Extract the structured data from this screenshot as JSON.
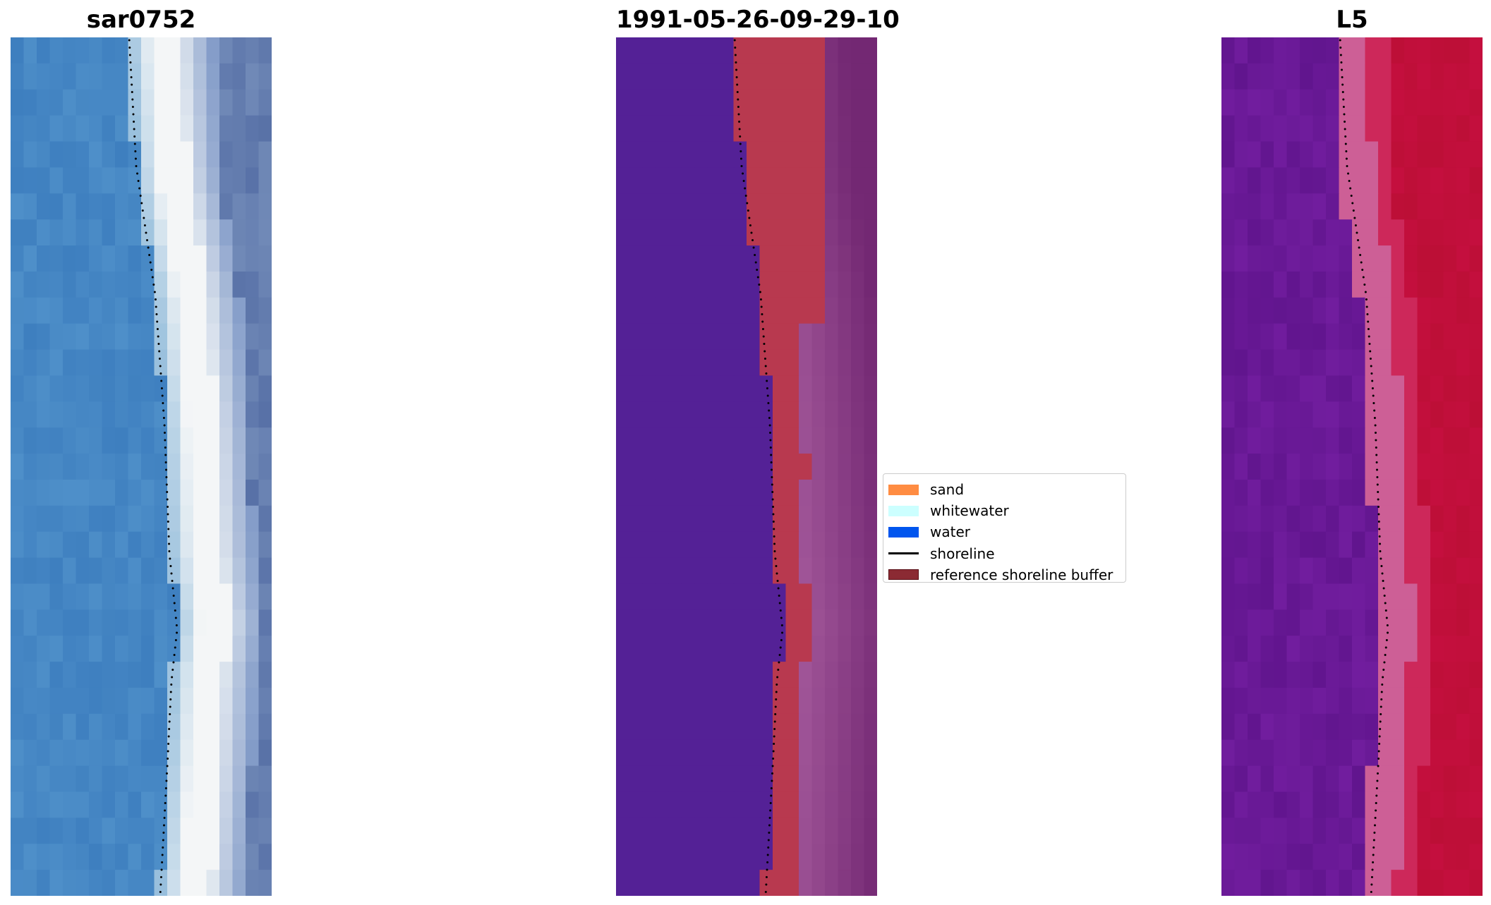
{
  "panels": [
    {
      "title": "sar0752",
      "kind": "rgb"
    },
    {
      "title": "1991-05-26-09-29-10",
      "kind": "classified"
    },
    {
      "title": "L5",
      "kind": "index"
    }
  ],
  "legend": {
    "items": [
      {
        "label": "sand",
        "color": "#ff8c42",
        "type": "patch"
      },
      {
        "label": "whitewater",
        "color": "#ccffff",
        "type": "patch"
      },
      {
        "label": "water",
        "color": "#0055ee",
        "type": "patch"
      },
      {
        "label": "shoreline",
        "color": "#000000",
        "type": "line"
      },
      {
        "label": "reference shoreline buffer",
        "color": "#8b2a33",
        "type": "patch"
      }
    ]
  },
  "colors": {
    "shoreline": "#000000",
    "rgb_water": "#4a89c4",
    "rgb_whitewater": "#f4f6f7",
    "classified_water": "#542196",
    "classified_buffer": "#b8394f",
    "classified_land": "#a05a9a",
    "index_low": "#6b179a",
    "index_high": "#c0103a"
  }
}
